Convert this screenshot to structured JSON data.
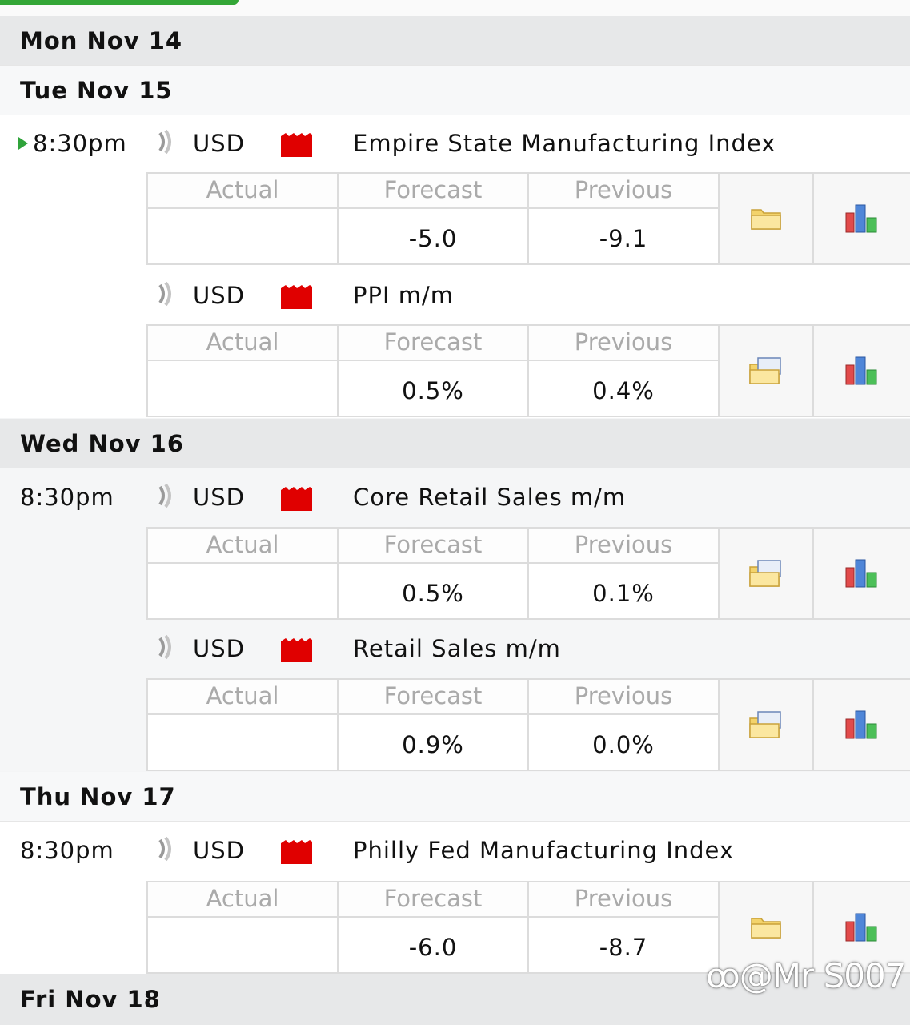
{
  "columns": {
    "actual": "Actual",
    "forecast": "Forecast",
    "previous": "Previous"
  },
  "days": [
    {
      "label": "Mon Nov 14"
    },
    {
      "label": "Tue Nov 15"
    },
    {
      "label": "Wed Nov 16"
    },
    {
      "label": "Thu Nov 17"
    },
    {
      "label": "Fri Nov 18"
    }
  ],
  "events": [
    {
      "time": "8:30pm",
      "currency": "USD",
      "title": "Empire State Manufacturing Index",
      "actual": "",
      "forecast": "-5.0",
      "previous": "-9.1"
    },
    {
      "time": "",
      "currency": "USD",
      "title": "PPI m/m",
      "actual": "",
      "forecast": "0.5%",
      "previous": "0.4%"
    },
    {
      "time": "8:30pm",
      "currency": "USD",
      "title": "Core Retail Sales m/m",
      "actual": "",
      "forecast": "0.5%",
      "previous": "0.1%"
    },
    {
      "time": "",
      "currency": "USD",
      "title": "Retail Sales m/m",
      "actual": "",
      "forecast": "0.9%",
      "previous": "0.0%"
    },
    {
      "time": "8:30pm",
      "currency": "USD",
      "title": "Philly Fed Manufacturing Index",
      "actual": "",
      "forecast": "-6.0",
      "previous": "-8.7"
    }
  ],
  "impact_color": "#e00000",
  "watermark": "@Mr S007"
}
